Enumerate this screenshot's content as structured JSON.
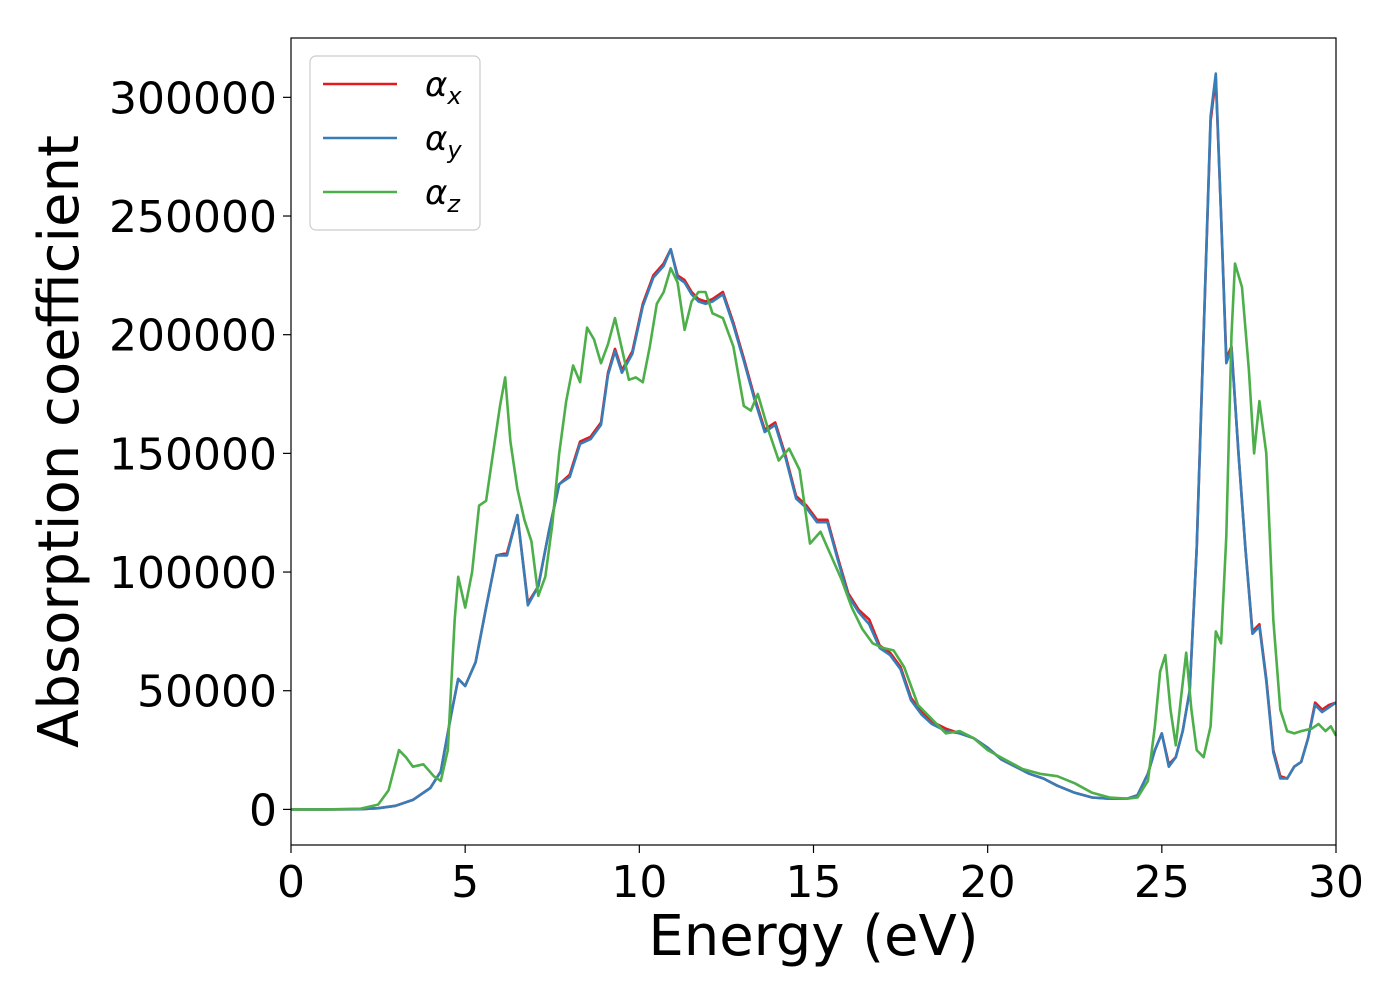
{
  "chart_data": {
    "type": "line",
    "title": "",
    "xlabel": "Energy (eV)",
    "ylabel": "Absorption coefficient",
    "xlim": [
      0,
      30
    ],
    "ylim": [
      -15000,
      325000
    ],
    "xticks": [
      0,
      5,
      10,
      15,
      20,
      25,
      30
    ],
    "xtick_labels": [
      "0",
      "5",
      "10",
      "15",
      "20",
      "25",
      "30"
    ],
    "yticks": [
      0,
      50000,
      100000,
      150000,
      200000,
      250000,
      300000
    ],
    "ytick_labels": [
      "0",
      "50000",
      "100000",
      "150000",
      "200000",
      "250000",
      "300000"
    ],
    "grid": false,
    "legend_position": "top-left",
    "series": [
      {
        "name": "αx",
        "legend_base": "α",
        "legend_sub": "x",
        "color": "#e41a1c",
        "x": [
          0,
          1,
          2,
          2.5,
          3,
          3.5,
          4,
          4.3,
          4.6,
          4.8,
          5,
          5.3,
          5.6,
          5.9,
          6.2,
          6.5,
          6.8,
          7.1,
          7.4,
          7.7,
          8,
          8.3,
          8.6,
          8.9,
          9.1,
          9.3,
          9.5,
          9.8,
          10.1,
          10.4,
          10.7,
          10.9,
          11.1,
          11.3,
          11.5,
          11.7,
          11.9,
          12.1,
          12.4,
          12.7,
          13,
          13.3,
          13.6,
          13.9,
          14.2,
          14.5,
          14.8,
          15.1,
          15.4,
          15.7,
          16,
          16.3,
          16.6,
          16.9,
          17.2,
          17.5,
          17.8,
          18.1,
          18.4,
          18.8,
          19.2,
          19.6,
          20,
          20.4,
          20.8,
          21.2,
          21.6,
          22,
          22.5,
          23,
          23.5,
          24,
          24.3,
          24.6,
          24.8,
          25,
          25.2,
          25.4,
          25.6,
          25.8,
          26,
          26.2,
          26.4,
          26.55,
          26.7,
          26.85,
          27,
          27.2,
          27.4,
          27.6,
          27.8,
          28,
          28.2,
          28.4,
          28.6,
          28.8,
          29,
          29.2,
          29.4,
          29.6,
          29.8,
          30
        ],
        "y": [
          0,
          0,
          100,
          500,
          1500,
          4000,
          9000,
          16000,
          40000,
          55000,
          52000,
          62000,
          85000,
          107000,
          108000,
          124000,
          87000,
          94000,
          117000,
          137000,
          141000,
          155000,
          157000,
          163000,
          184000,
          194000,
          185000,
          193000,
          213000,
          225000,
          230000,
          236000,
          225000,
          223000,
          218000,
          215000,
          214000,
          215000,
          218000,
          205000,
          190000,
          174000,
          160000,
          163000,
          149000,
          132000,
          128000,
          122000,
          122000,
          106000,
          91000,
          84000,
          80000,
          69000,
          66000,
          60000,
          47000,
          41000,
          37000,
          34000,
          32000,
          30000,
          26000,
          21000,
          18000,
          15000,
          13000,
          10000,
          7000,
          5000,
          4500,
          4500,
          6000,
          15000,
          25000,
          32000,
          19000,
          22000,
          33000,
          50000,
          110000,
          200000,
          290000,
          308000,
          250000,
          190000,
          195000,
          150000,
          110000,
          75000,
          78000,
          55000,
          25000,
          14000,
          13000,
          18000,
          20000,
          30000,
          45000,
          42000,
          44000,
          45000
        ]
      },
      {
        "name": "αy",
        "legend_base": "α",
        "legend_sub": "y",
        "color": "#377eb8",
        "x": [
          0,
          1,
          2,
          2.5,
          3,
          3.5,
          4,
          4.3,
          4.6,
          4.8,
          5,
          5.3,
          5.6,
          5.9,
          6.2,
          6.5,
          6.8,
          7.1,
          7.4,
          7.7,
          8,
          8.3,
          8.6,
          8.9,
          9.1,
          9.3,
          9.5,
          9.8,
          10.1,
          10.4,
          10.7,
          10.9,
          11.1,
          11.3,
          11.5,
          11.7,
          11.9,
          12.1,
          12.4,
          12.7,
          13,
          13.3,
          13.6,
          13.9,
          14.2,
          14.5,
          14.8,
          15.1,
          15.4,
          15.7,
          16,
          16.3,
          16.6,
          16.9,
          17.2,
          17.5,
          17.8,
          18.1,
          18.4,
          18.8,
          19.2,
          19.6,
          20,
          20.4,
          20.8,
          21.2,
          21.6,
          22,
          22.5,
          23,
          23.5,
          24,
          24.3,
          24.6,
          24.8,
          25,
          25.2,
          25.4,
          25.6,
          25.8,
          26,
          26.2,
          26.4,
          26.55,
          26.7,
          26.85,
          27,
          27.2,
          27.4,
          27.6,
          27.8,
          28,
          28.2,
          28.4,
          28.6,
          28.8,
          29,
          29.2,
          29.4,
          29.6,
          29.8,
          30
        ],
        "y": [
          0,
          0,
          100,
          500,
          1500,
          4000,
          9000,
          16000,
          40000,
          55000,
          52000,
          62000,
          85000,
          107000,
          107000,
          124000,
          86000,
          94000,
          117000,
          137000,
          140000,
          154000,
          156000,
          162000,
          183000,
          193000,
          184000,
          192000,
          212000,
          224000,
          229000,
          236000,
          224000,
          222000,
          217000,
          214000,
          213000,
          214000,
          217000,
          204000,
          189000,
          173000,
          159000,
          162000,
          148000,
          131000,
          127000,
          121000,
          121000,
          105000,
          90000,
          83000,
          78000,
          68000,
          65000,
          59000,
          46000,
          40000,
          36000,
          33000,
          32000,
          30000,
          26000,
          21000,
          18000,
          15000,
          13000,
          10000,
          7000,
          5000,
          4500,
          4500,
          6000,
          15000,
          25000,
          32000,
          18000,
          22000,
          33000,
          50000,
          110000,
          200000,
          292000,
          310000,
          250000,
          188000,
          194000,
          150000,
          110000,
          74000,
          77000,
          54000,
          24000,
          13000,
          13000,
          18000,
          20000,
          30000,
          44000,
          41000,
          43000,
          45000
        ]
      },
      {
        "name": "αz",
        "legend_base": "α",
        "legend_sub": "z",
        "color": "#4daf4a",
        "x": [
          0,
          1,
          2,
          2.5,
          2.8,
          3.1,
          3.3,
          3.5,
          3.8,
          4.1,
          4.3,
          4.5,
          4.7,
          4.8,
          5,
          5.2,
          5.4,
          5.6,
          5.8,
          6,
          6.15,
          6.3,
          6.5,
          6.7,
          6.9,
          7.1,
          7.3,
          7.5,
          7.7,
          7.9,
          8.1,
          8.3,
          8.5,
          8.7,
          8.9,
          9.1,
          9.3,
          9.5,
          9.7,
          9.9,
          10.1,
          10.3,
          10.5,
          10.7,
          10.9,
          11.1,
          11.3,
          11.5,
          11.7,
          11.9,
          12.1,
          12.4,
          12.7,
          13,
          13.2,
          13.4,
          13.7,
          14,
          14.3,
          14.6,
          14.9,
          15.2,
          15.5,
          15.8,
          16.1,
          16.4,
          16.7,
          17,
          17.3,
          17.6,
          18,
          18.4,
          18.8,
          19.2,
          19.6,
          20,
          20.5,
          21,
          21.5,
          22,
          22.5,
          23,
          23.5,
          24,
          24.3,
          24.6,
          24.8,
          24.95,
          25.1,
          25.25,
          25.4,
          25.55,
          25.7,
          25.85,
          26,
          26.2,
          26.4,
          26.55,
          26.7,
          26.85,
          27,
          27.1,
          27.3,
          27.5,
          27.65,
          27.8,
          28,
          28.2,
          28.4,
          28.6,
          28.8,
          29,
          29.3,
          29.5,
          29.7,
          29.85,
          30
        ],
        "y": [
          0,
          0,
          300,
          2000,
          8000,
          25000,
          22000,
          18000,
          19000,
          14000,
          12000,
          25000,
          80000,
          98000,
          85000,
          100000,
          128000,
          130000,
          150000,
          170000,
          182000,
          155000,
          135000,
          122000,
          113000,
          90000,
          98000,
          120000,
          150000,
          172000,
          187000,
          180000,
          203000,
          198000,
          188000,
          196000,
          207000,
          194000,
          181000,
          182000,
          180000,
          195000,
          213000,
          218000,
          228000,
          222000,
          202000,
          214000,
          218000,
          218000,
          209000,
          207000,
          195000,
          170000,
          168000,
          175000,
          160000,
          147000,
          152000,
          143000,
          112000,
          117000,
          107000,
          97000,
          85000,
          76000,
          70000,
          68000,
          67000,
          60000,
          44000,
          38000,
          32000,
          33000,
          30000,
          25000,
          21000,
          17000,
          15000,
          14000,
          11000,
          7000,
          5000,
          4500,
          5000,
          12000,
          35000,
          58000,
          65000,
          42000,
          27000,
          47000,
          66000,
          42000,
          25000,
          22000,
          35000,
          75000,
          70000,
          115000,
          200000,
          230000,
          220000,
          185000,
          150000,
          172000,
          150000,
          80000,
          42000,
          33000,
          32000,
          33000,
          34000,
          36000,
          33000,
          35000,
          31000
        ]
      }
    ]
  }
}
